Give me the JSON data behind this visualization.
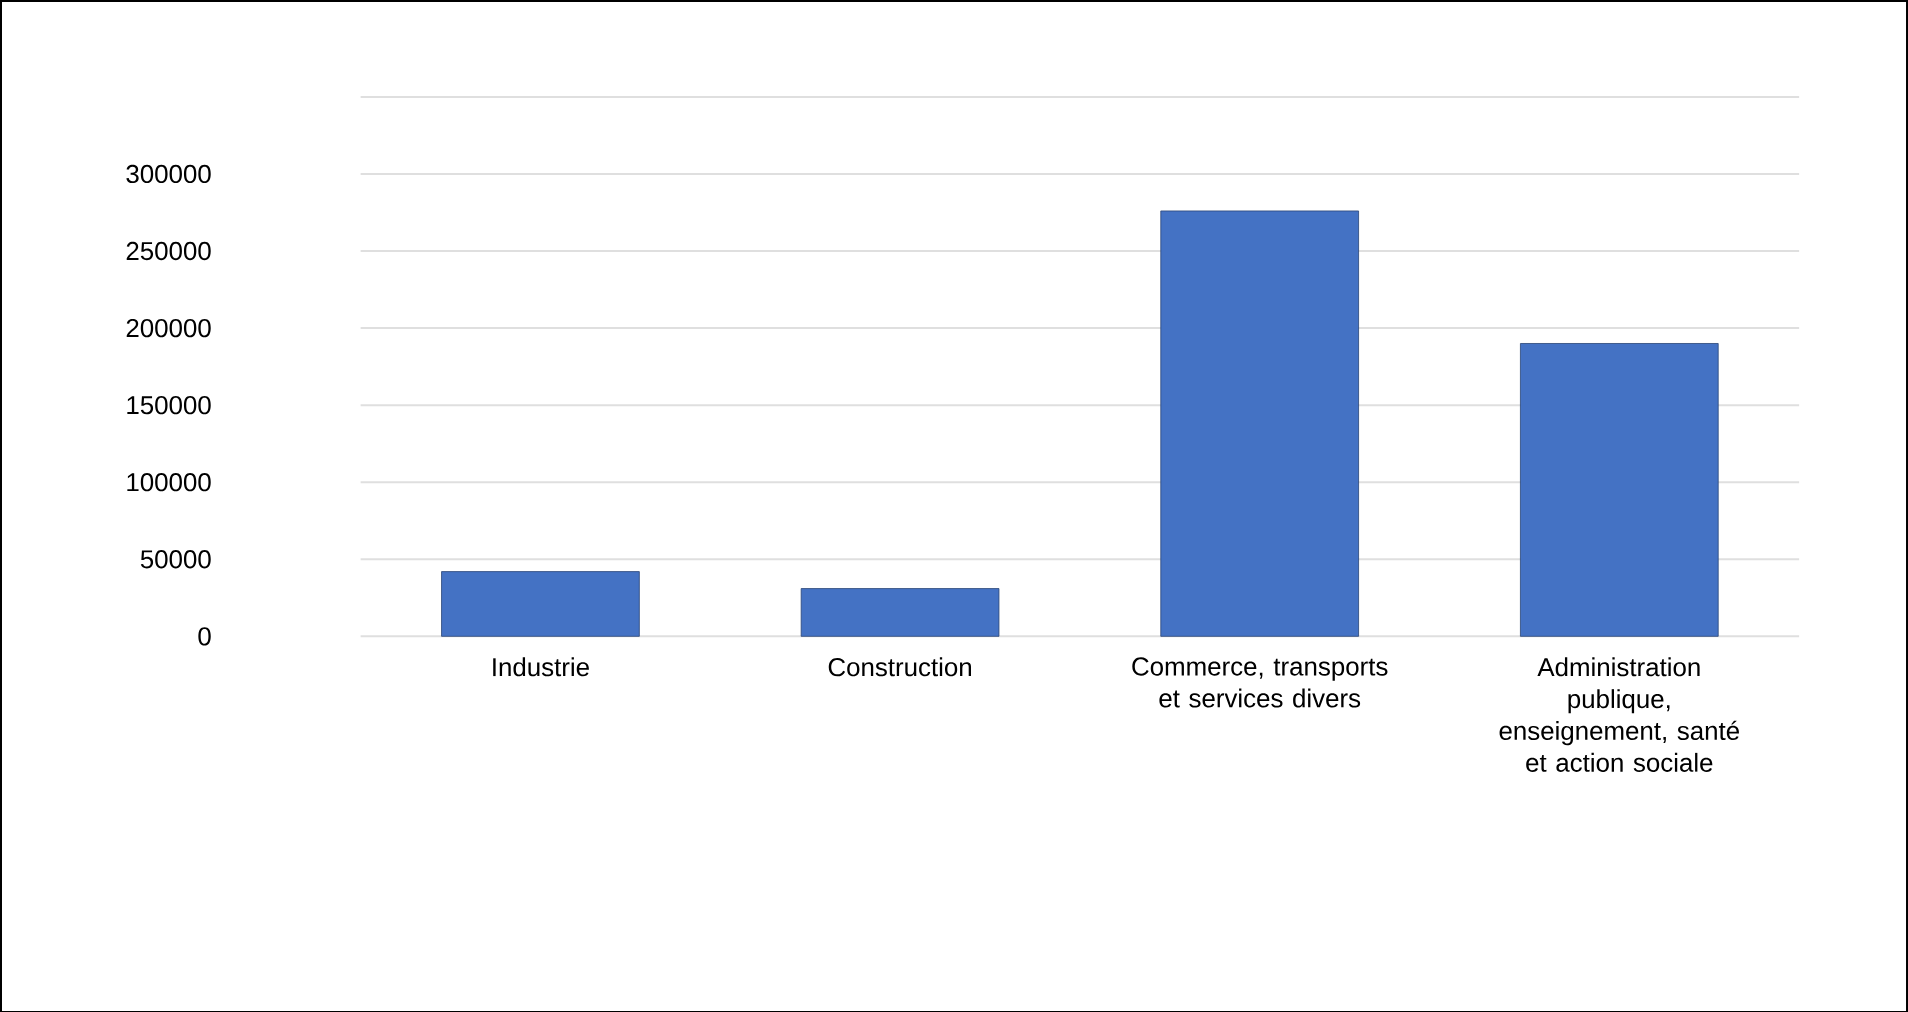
{
  "chart_data": {
    "type": "bar",
    "categories": [
      "Industrie",
      "Construction",
      "Commerce, transports et services divers",
      "Administration publique, enseignement, santé et action sociale"
    ],
    "values": [
      42000,
      31000,
      276000,
      190000
    ],
    "color": "#4472c4",
    "ylim": [
      0,
      350000
    ],
    "yticks": [
      0,
      50000,
      100000,
      150000,
      200000,
      250000,
      300000,
      {
        "value": 350000,
        "label": null
      }
    ],
    "grid": "y"
  }
}
